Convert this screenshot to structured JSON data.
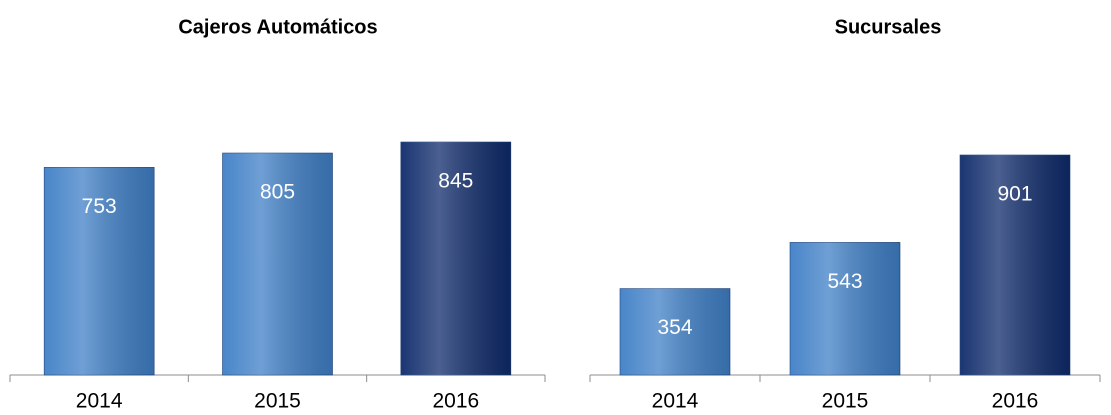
{
  "chart_data": [
    {
      "type": "bar",
      "title": "Cajeros Automáticos",
      "categories": [
        "2014",
        "2015",
        "2016"
      ],
      "values": [
        753,
        805,
        845
      ],
      "colors": [
        "#3f7fc6",
        "#3f7fc6",
        "#0f2b6b"
      ]
    },
    {
      "type": "bar",
      "title": "Sucursales",
      "categories": [
        "2014",
        "2015",
        "2016"
      ],
      "values": [
        354,
        543,
        901
      ],
      "colors": [
        "#3f7fc6",
        "#3f7fc6",
        "#0f2b6b"
      ]
    }
  ]
}
